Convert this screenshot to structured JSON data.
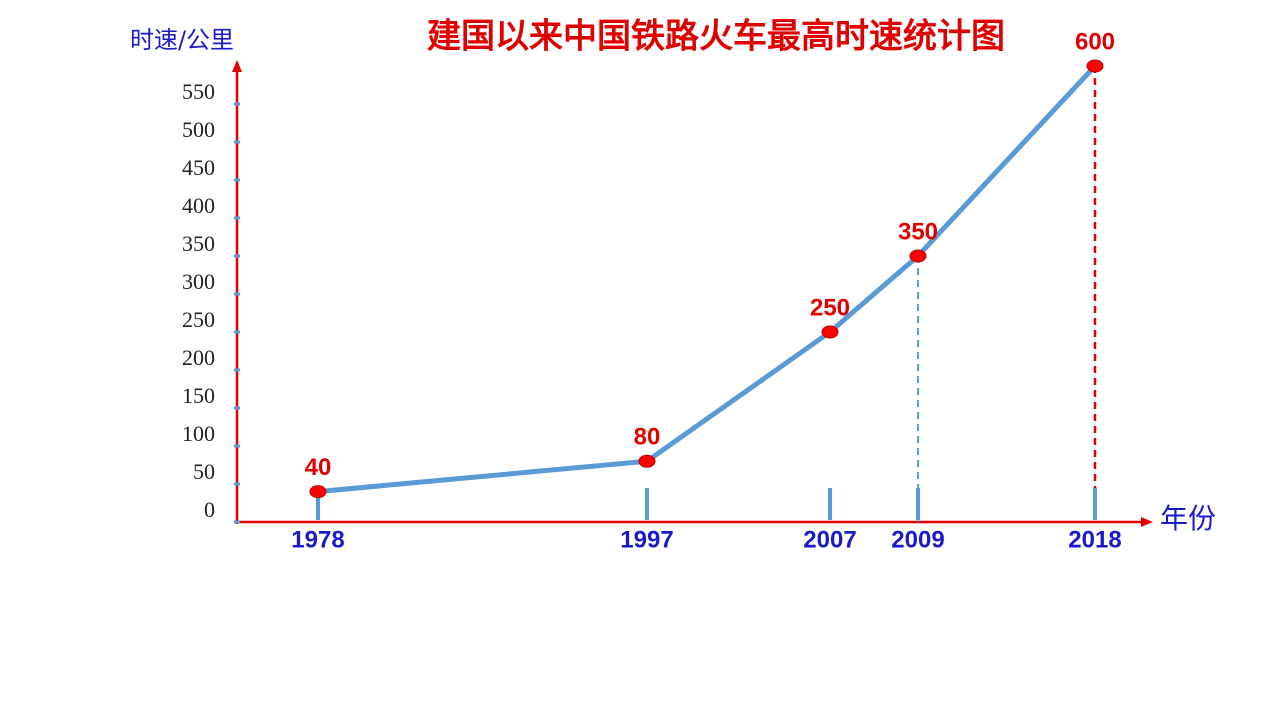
{
  "chart_data": {
    "type": "line",
    "title": "建国以来中国铁路火车最高时速统计图",
    "y_label": "时速/公里",
    "x_label": "年份",
    "categories": [
      "1978",
      "1997",
      "2007",
      "2009",
      "2018"
    ],
    "series": [
      {
        "name": "最高时速",
        "color": "#5b9bd5",
        "values": [
          40,
          80,
          250,
          350,
          600
        ]
      }
    ],
    "marker_color": "#ff0000",
    "ylim": [
      0,
      600
    ],
    "yticks": [
      0,
      50,
      100,
      150,
      200,
      250,
      300,
      350,
      400,
      450,
      500,
      550
    ]
  }
}
